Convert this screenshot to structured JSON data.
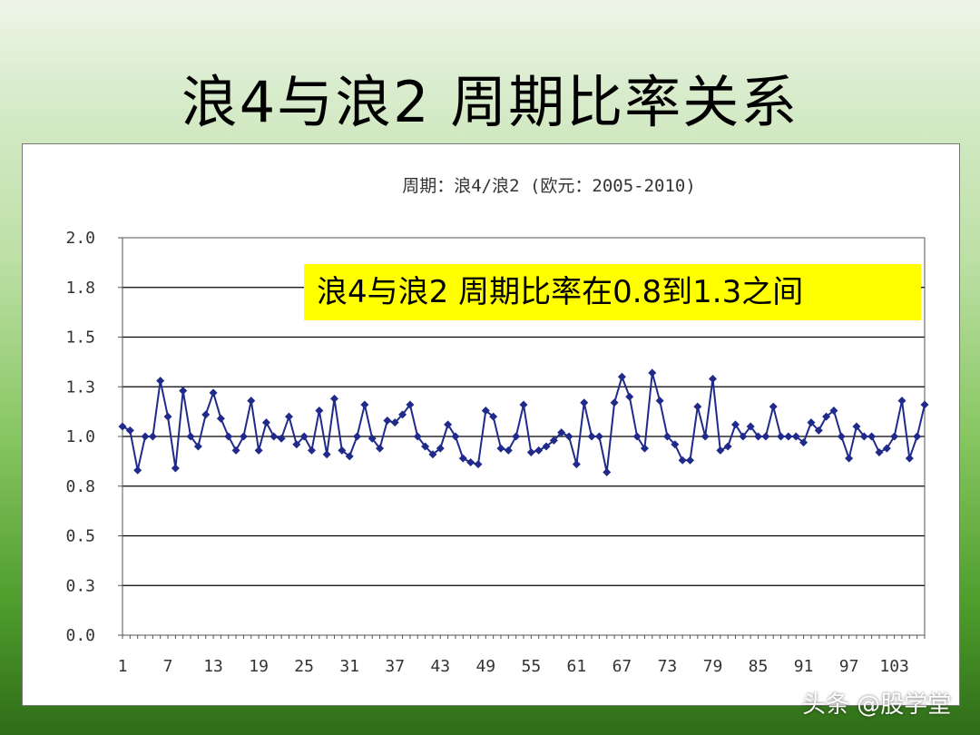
{
  "slide": {
    "title": "浪4与浪2 周期比率关系",
    "watermark": "头条 @股学堂"
  },
  "colors": {
    "series": "#1f2a8a",
    "callout_bg": "#ffff00"
  },
  "chart_data": {
    "type": "line",
    "title": "周期：浪4/浪2 (欧元：2005-2010)",
    "annotation": "浪4与浪2 周期比率在0.8到1.3之间",
    "ylim": [
      0,
      2.0
    ],
    "y_ticks": [
      0.0,
      0.25,
      0.5,
      0.75,
      1.0,
      1.25,
      1.5,
      1.75,
      2.0
    ],
    "y_tick_labels": [
      "0.0",
      "0.3",
      "0.5",
      "0.8",
      "1.0",
      "1.3",
      "1.5",
      "1.8",
      "2.0"
    ],
    "x_tick_labels": [
      "1",
      "7",
      "13",
      "19",
      "25",
      "31",
      "37",
      "43",
      "49",
      "55",
      "61",
      "67",
      "73",
      "79",
      "85",
      "91",
      "97",
      "103"
    ],
    "x_tick_values": [
      1,
      7,
      13,
      19,
      25,
      31,
      37,
      43,
      49,
      55,
      61,
      67,
      73,
      79,
      85,
      91,
      97,
      103
    ],
    "xlim": [
      1,
      107
    ],
    "grid": "horizontal",
    "marker": "diamond",
    "series": [
      {
        "values": [
          1.05,
          1.03,
          0.83,
          1.0,
          1.0,
          1.28,
          1.1,
          0.84,
          1.23,
          1.0,
          0.95,
          1.11,
          1.22,
          1.09,
          1.0,
          0.93,
          1.0,
          1.18,
          0.93,
          1.07,
          1.0,
          0.99,
          1.1,
          0.96,
          1.0,
          0.93,
          1.13,
          0.91,
          1.19,
          0.93,
          0.9,
          1.0,
          1.16,
          0.99,
          0.94,
          1.08,
          1.07,
          1.11,
          1.16,
          1.0,
          0.95,
          0.91,
          0.94,
          1.06,
          1.0,
          0.89,
          0.87,
          0.86,
          1.13,
          1.1,
          0.94,
          0.93,
          1.0,
          1.16,
          0.92,
          0.93,
          0.95,
          0.98,
          1.02,
          1.0,
          0.86,
          1.17,
          1.0,
          1.0,
          0.82,
          1.17,
          1.3,
          1.2,
          1.0,
          0.94,
          1.32,
          1.18,
          1.0,
          0.96,
          0.88,
          0.88,
          1.15,
          1.0,
          1.29,
          0.93,
          0.95,
          1.06,
          1.0,
          1.05,
          1.0,
          1.0,
          1.15,
          1.0,
          1.0,
          1.0,
          0.97,
          1.07,
          1.03,
          1.1,
          1.13,
          1.0,
          0.89,
          1.05,
          1.0,
          1.0,
          0.92,
          0.94,
          1.0,
          1.18,
          0.89,
          1.0,
          1.16
        ]
      }
    ]
  }
}
